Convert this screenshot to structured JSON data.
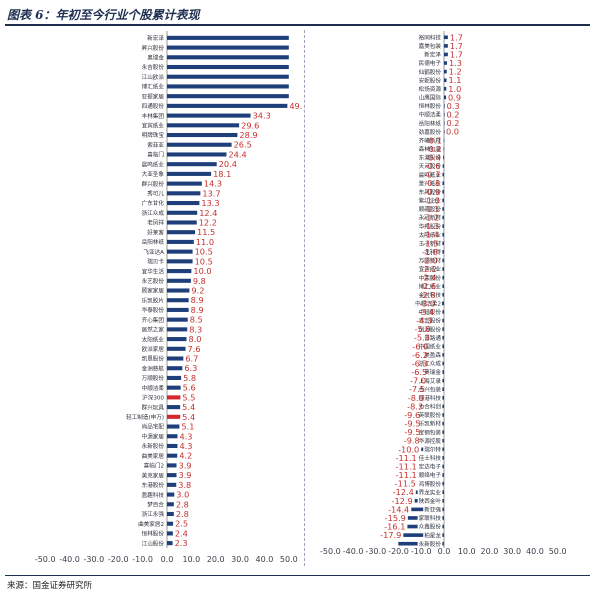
{
  "header": {
    "title": "图表 6：年初至今行业个股累计表现"
  },
  "footer": {
    "source": "来源：国金证券研究所"
  },
  "colors": {
    "bar": "#1f3f7a",
    "highlight": "#d9262c",
    "label": "#c5312f",
    "axis": "#7a7f8a"
  },
  "chart_data": [
    {
      "type": "bar",
      "orientation": "horizontal",
      "xlim": [
        -55,
        55
      ],
      "ticks": [
        -50.0,
        -40.0,
        -30.0,
        -20.0,
        -10.0,
        0.0,
        10.0,
        20.0,
        30.0,
        40.0,
        50.0
      ],
      "grid": false,
      "categories": [
        "裕同科技",
        "嘉美包装",
        "新宏泽",
        "民德电子",
        "仙鹤股份",
        "安妮股份",
        "松炀资源",
        "山鹰国际",
        "恒林股份",
        "中顺洁柔",
        "岳阳林纸",
        "劲嘉股份",
        "齐峰新材",
        "森林包装",
        "东港股份",
        "天元股份",
        "晨鸣纸业",
        "景兴纸业",
        "东风股份",
        "紫江企业",
        "顺灏股份",
        "永冠新材",
        "华邦股份",
        "太阳纸业",
        "王子新材",
        "龙利得",
        "万顺新材",
        "宜宾纸业",
        "中荣股份",
        "博汇纸业",
        "金时科技",
        "中顺洁柔2",
        "中锐股份",
        "吉宏股份",
        "创源股份",
        "普路通",
        "中国纸业",
        "美盈森",
        "浙江众成",
        "奥瑞金",
        "上海艾录",
        "合兴包装",
        "翔港科技",
        "力合科创",
        "英联股份",
        "乐凯新材",
        "宝钢包装",
        "华源控股",
        "瑞尔特",
        "佳士科技",
        "宏达电子",
        "顺络电子",
        "鸿博股份",
        "界龙实业",
        "陕西金叶",
        "新亚强",
        "家联科技",
        "众鑫股份",
        "柏星龙",
        "永新股份"
      ],
      "values": [
        1.7,
        1.7,
        1.7,
        1.3,
        1.2,
        1.1,
        1.0,
        0.9,
        0.3,
        0.2,
        0.2,
        0.0,
        -0.1,
        -0.2,
        -0.4,
        -0.6,
        -0.7,
        -0.8,
        -0.9,
        -1.0,
        -1.1,
        -1.2,
        -1.3,
        -1.4,
        -1.5,
        -1.8,
        -2.0,
        -2.2,
        -2.4,
        -2.6,
        -2.8,
        -3.0,
        -3.4,
        -4.3,
        -5.0,
        -5.3,
        -6.0,
        -6.2,
        -6.3,
        -6.5,
        -7.0,
        -7.5,
        -8.0,
        -8.3,
        -9.6,
        -9.5,
        -9.5,
        -9.8,
        -10.0,
        -11.1,
        -11.1,
        -11.1,
        -11.5,
        -12.4,
        -12.9,
        -14.4,
        -15.9,
        -16.1,
        -17.9,
        -20.1
      ],
      "data_labels": [
        "1.7",
        "1.7",
        "1.7",
        "1.3",
        "1.2",
        "1.1",
        "1.0",
        "0.9",
        "0.3",
        "0.2",
        "0.2",
        "0.0",
        "-0.1",
        "-0.2",
        "-0.4",
        "-0.6",
        "-0.7",
        "-0.8",
        "-0.9",
        "-1.0",
        "-1.1",
        "-1.2",
        "-1.3",
        "-1.4",
        "-1.5",
        "-1.8",
        "-2.0",
        "-2.2",
        "-2.4",
        "-2.6",
        "-2.8",
        "-3.0",
        "-3.4",
        "-4.3",
        "-5.0",
        "-5.3",
        "-6.0",
        "-6.2",
        "-6.3",
        "-6.5",
        "-7.0",
        "-7.5",
        "-8.0",
        "-8.3",
        "-9.6",
        "-9.5",
        "-9.5",
        "-9.8",
        "-10.0",
        "-11.1",
        "-11.1",
        "-11.1",
        "-11.5",
        "-12.4",
        "-12.9",
        "-14.4",
        "-15.9",
        "-16.1",
        "-17.9",
        ""
      ]
    },
    {
      "type": "bar",
      "orientation": "horizontal",
      "xlim": [
        -55,
        55
      ],
      "ticks": [
        -50.0,
        -40.0,
        -30.0,
        -20.0,
        -10.0,
        0.0,
        10.0,
        20.0,
        30.0,
        40.0,
        50.0
      ],
      "grid": false,
      "categories": [
        "新宏泽",
        "昇兴股份",
        "奥瑞金",
        "永吉股份",
        "江山欧派",
        "博汇纸业",
        "亚振家居",
        "四通股份",
        "丰林集团",
        "宜宾纸业",
        "明牌珠宝",
        "索菲亚",
        "喜临门",
        "晨鸣纸业",
        "大亚圣象",
        "群兴股份",
        "秀可儿",
        "广东甘化",
        "浙江众成",
        "老凤祥",
        "好莱客",
        "岳阳林纸",
        "飞亚达A",
        "瑞贝卡",
        "宜华生活",
        "永艺股份",
        "顾家家居",
        "乐凯胶片",
        "华泰股份",
        "齐心集团",
        "居然之家",
        "太阳纸业",
        "欧派家居",
        "凯恩股份",
        "金洲慈航",
        "万顺股份",
        "中顺洁柔",
        "沪深300",
        "群兴玩具",
        "轻工制造(申万)",
        "尚品宅配",
        "中源家居",
        "永新股份",
        "曲美家居",
        "喜临门2",
        "美克家居",
        "东港股份",
        "盈趣科技",
        "梦百合",
        "浙江永强",
        "曲美家居2",
        "恒林股份",
        "江山股份"
      ],
      "values": [
        50,
        50,
        50,
        50,
        50,
        50,
        50,
        49.4,
        34.3,
        29.6,
        28.9,
        26.5,
        24.4,
        20.4,
        18.1,
        14.3,
        13.7,
        13.3,
        12.4,
        12.2,
        11.5,
        11.0,
        10.5,
        10.5,
        10.0,
        9.8,
        9.2,
        8.9,
        8.9,
        8.5,
        8.3,
        8.0,
        7.6,
        6.7,
        6.3,
        5.8,
        5.6,
        5.5,
        5.4,
        5.4,
        5.1,
        4.3,
        4.3,
        4.2,
        3.9,
        3.9,
        3.8,
        3.0,
        2.8,
        2.8,
        2.5,
        2.4,
        2.3
      ],
      "data_labels": [
        "",
        "",
        "",
        "",
        "",
        "",
        "",
        "49.4",
        "34.3",
        "29.6",
        "28.9",
        "26.5",
        "24.4",
        "20.4",
        "18.1",
        "14.3",
        "13.7",
        "13.3",
        "12.4",
        "12.2",
        "11.5",
        "11.0",
        "10.5",
        "10.5",
        "10.0",
        "9.8",
        "9.2",
        "8.9",
        "8.9",
        "8.5",
        "8.3",
        "8.0",
        "7.6",
        "6.7",
        "6.3",
        "5.8",
        "5.6",
        "5.5",
        "5.4",
        "5.4",
        "5.1",
        "4.3",
        "4.3",
        "4.2",
        "3.9",
        "3.9",
        "3.8",
        "3.0",
        "2.8",
        "2.8",
        "2.5",
        "2.4",
        "2.3"
      ],
      "highlighted_categories": [
        "沪深300",
        "轻工制造(申万)"
      ]
    }
  ]
}
